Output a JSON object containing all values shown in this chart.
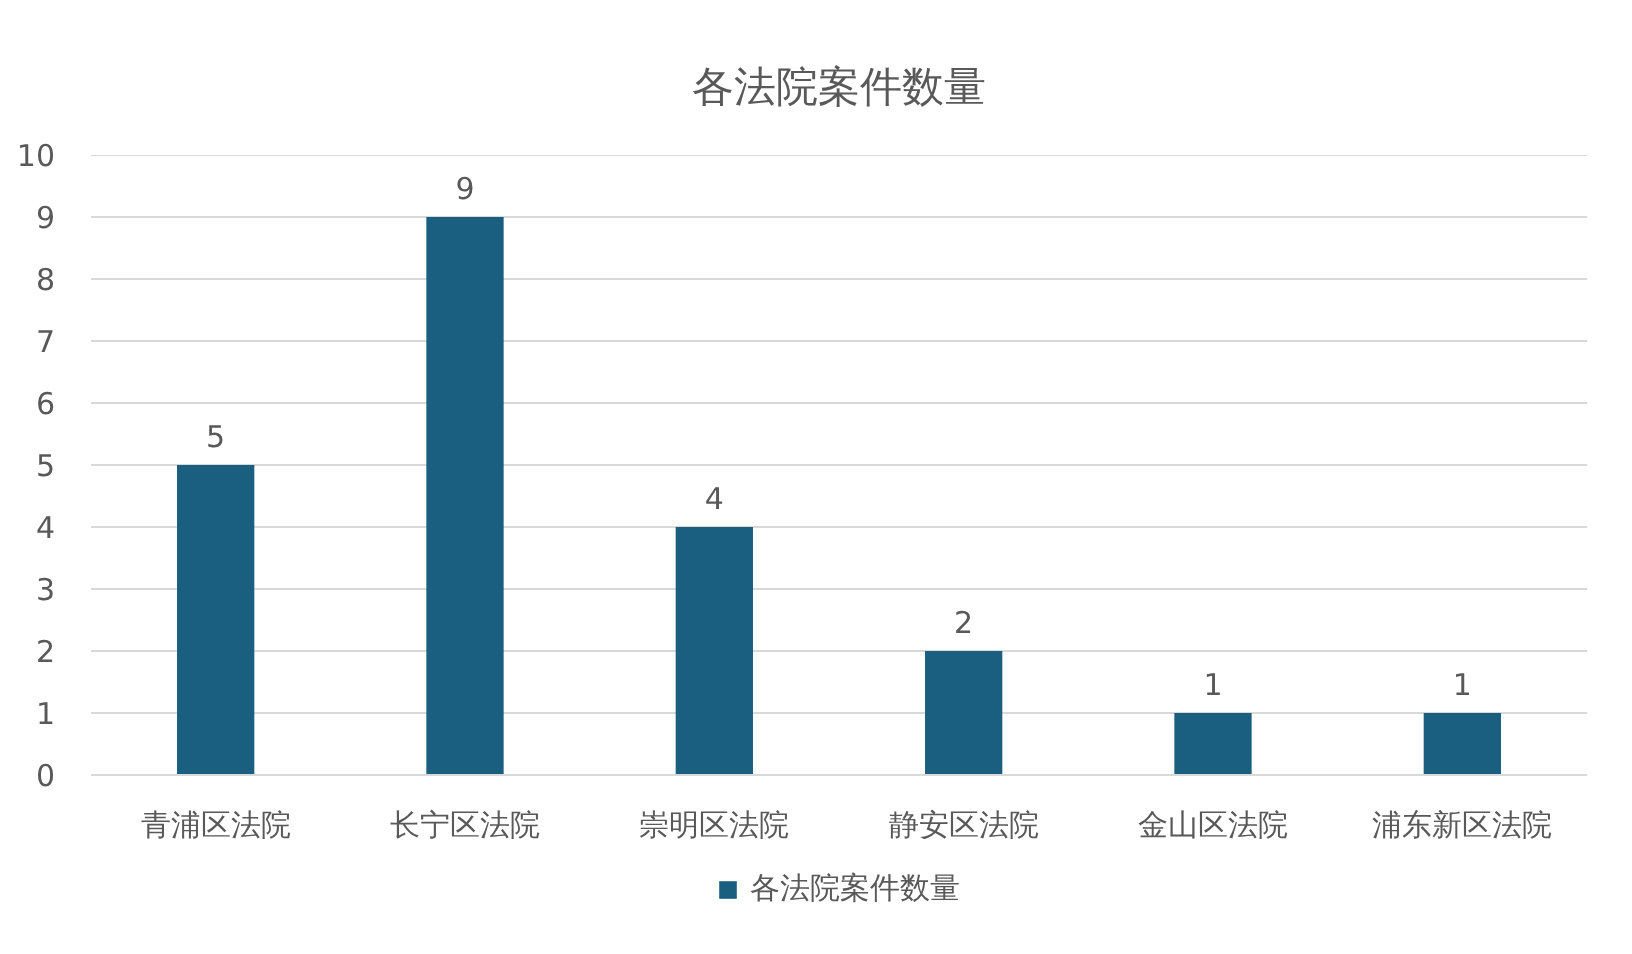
{
  "chart_data": {
    "type": "bar",
    "title": "各法院案件数量",
    "categories": [
      "青浦区法院",
      "长宁区法院",
      "崇明区法院",
      "静安区法院",
      "金山区法院",
      "浦东新区法院"
    ],
    "series": [
      {
        "name": "各法院案件数量",
        "color": "#1a5e80",
        "values": [
          5,
          9,
          4,
          2,
          1,
          1
        ]
      }
    ],
    "ylim": [
      0,
      10
    ],
    "yticks": [
      0,
      1,
      2,
      3,
      4,
      5,
      6,
      7,
      8,
      9,
      10
    ],
    "grid": "y",
    "legend": "bottom",
    "data_labels": true
  }
}
